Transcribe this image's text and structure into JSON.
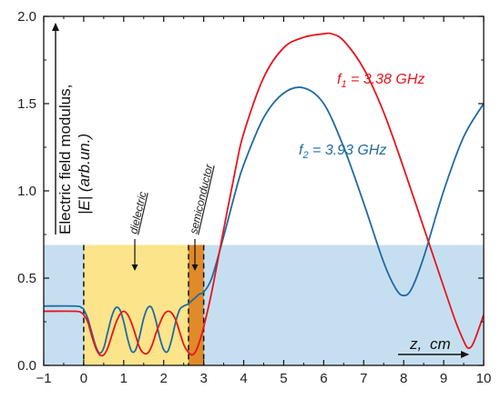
{
  "chart_data": {
    "type": "line",
    "xlabel_symbol": "z,",
    "xlabel_unit": "cm",
    "ylabel_line1": "Electric field modulus,",
    "ylabel_line2_a": "|E|",
    "ylabel_line2_b": " (arb.un.)",
    "xlim": [
      -1,
      10
    ],
    "ylim": [
      0,
      2.0
    ],
    "xticks": [
      "−1",
      "0",
      "1",
      "2",
      "3",
      "4",
      "5",
      "6",
      "7",
      "8",
      "9",
      "10"
    ],
    "xtick_values": [
      -1,
      0,
      1,
      2,
      3,
      4,
      5,
      6,
      7,
      8,
      9,
      10
    ],
    "yticks": [
      "0.0",
      "0.5",
      "1.0",
      "1.5",
      "2.0"
    ],
    "ytick_values": [
      0,
      0.5,
      1.0,
      1.5,
      2.0
    ],
    "regions": [
      {
        "name": "background",
        "x0": -1,
        "x1": 10,
        "y0": 0,
        "y1": 0.69,
        "color": "#c6dff0"
      },
      {
        "label": "dielectric",
        "x0": 0,
        "x1": 2.62,
        "y0": 0,
        "y1": 0.69,
        "color": "#fce48a"
      },
      {
        "label": "semiconductor",
        "x0": 2.62,
        "x1": 3.0,
        "y0": 0,
        "y1": 0.69,
        "color": "#e08a2a"
      }
    ],
    "boundaries": [
      0,
      2.62,
      3.0
    ],
    "series": [
      {
        "name_main": "f",
        "name_sub": "1",
        "name_rest": " = 3.38 GHz",
        "color": "#e8141c",
        "x": [
          -1,
          -0.2,
          -0.05,
          0,
          0.1,
          0.2,
          0.3,
          0.4,
          0.5,
          0.6,
          0.7,
          0.8,
          0.9,
          1.0,
          1.1,
          1.2,
          1.3,
          1.4,
          1.5,
          1.6,
          1.7,
          1.8,
          1.9,
          2.0,
          2.1,
          2.2,
          2.3,
          2.4,
          2.5,
          2.6,
          2.7,
          2.8,
          2.9,
          3.0,
          3.2,
          3.5,
          3.8,
          4.0,
          4.5,
          5.0,
          5.5,
          6.0,
          6.2,
          6.5,
          7.0,
          7.5,
          8.0,
          8.5,
          9.0,
          9.3,
          9.5,
          9.6,
          9.7,
          9.8,
          10.0
        ],
        "y": [
          0.31,
          0.31,
          0.3,
          0.29,
          0.25,
          0.17,
          0.1,
          0.06,
          0.06,
          0.1,
          0.17,
          0.24,
          0.29,
          0.31,
          0.29,
          0.24,
          0.17,
          0.1,
          0.07,
          0.07,
          0.11,
          0.18,
          0.24,
          0.29,
          0.31,
          0.3,
          0.26,
          0.19,
          0.12,
          0.08,
          0.06,
          0.08,
          0.14,
          0.22,
          0.42,
          0.78,
          1.13,
          1.33,
          1.65,
          1.82,
          1.88,
          1.9,
          1.9,
          1.86,
          1.7,
          1.45,
          1.13,
          0.79,
          0.45,
          0.25,
          0.14,
          0.1,
          0.11,
          0.16,
          0.29
        ]
      },
      {
        "name_main": "f",
        "name_sub": "2",
        "name_rest": " = 3.93 GHz",
        "color": "#1f6aa5",
        "x": [
          -1,
          -0.2,
          -0.05,
          0,
          0.1,
          0.2,
          0.3,
          0.4,
          0.5,
          0.6,
          0.7,
          0.8,
          0.9,
          1.0,
          1.1,
          1.2,
          1.3,
          1.4,
          1.5,
          1.6,
          1.7,
          1.8,
          1.9,
          2.0,
          2.1,
          2.2,
          2.3,
          2.4,
          2.5,
          2.6,
          2.7,
          2.8,
          2.9,
          3.0,
          3.2,
          3.5,
          3.8,
          4.0,
          4.5,
          5.0,
          5.5,
          6.0,
          6.5,
          7.0,
          7.5,
          7.8,
          8.0,
          8.2,
          8.5,
          9.0,
          9.5,
          10.0
        ],
        "y": [
          0.34,
          0.34,
          0.33,
          0.32,
          0.27,
          0.19,
          0.11,
          0.07,
          0.1,
          0.19,
          0.28,
          0.33,
          0.32,
          0.25,
          0.15,
          0.08,
          0.09,
          0.17,
          0.27,
          0.33,
          0.33,
          0.26,
          0.16,
          0.09,
          0.08,
          0.15,
          0.25,
          0.32,
          0.34,
          0.35,
          0.37,
          0.39,
          0.41,
          0.42,
          0.5,
          0.74,
          1.0,
          1.15,
          1.42,
          1.56,
          1.59,
          1.5,
          1.25,
          0.93,
          0.59,
          0.44,
          0.4,
          0.44,
          0.62,
          1.0,
          1.31,
          1.5
        ]
      }
    ]
  }
}
